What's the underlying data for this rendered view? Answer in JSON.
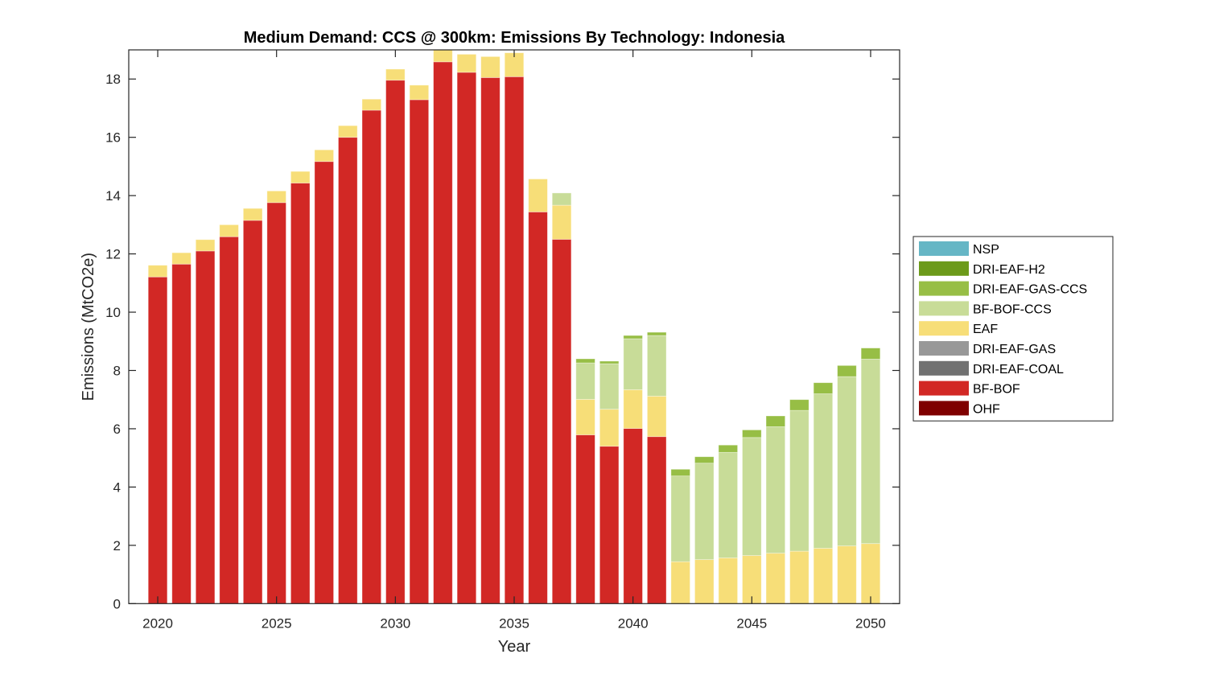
{
  "chart_data": {
    "type": "bar",
    "stacked": true,
    "title": "Medium Demand: CCS @ 300km: Emissions By Technology: Indonesia",
    "xlabel": "Year",
    "ylabel": "Emissions (MtCO2e)",
    "xlim": [
      2018.78,
      2051.22
    ],
    "ylim": [
      0,
      19
    ],
    "xticks": [
      2020,
      2025,
      2030,
      2035,
      2040,
      2045,
      2050
    ],
    "yticks": [
      0,
      2,
      4,
      6,
      8,
      10,
      12,
      14,
      16,
      18
    ],
    "grid": false,
    "legend_position": "right",
    "categories": [
      2020,
      2021,
      2022,
      2023,
      2024,
      2025,
      2026,
      2027,
      2028,
      2029,
      2030,
      2031,
      2032,
      2033,
      2034,
      2035,
      2036,
      2037,
      2038,
      2039,
      2040,
      2041,
      2042,
      2043,
      2044,
      2045,
      2046,
      2047,
      2048,
      2049,
      2050
    ],
    "series": [
      {
        "name": "OHF",
        "color": "#7F0000",
        "values": [
          0,
          0,
          0,
          0,
          0,
          0,
          0,
          0,
          0,
          0,
          0,
          0,
          0,
          0,
          0,
          0,
          0,
          0,
          0,
          0,
          0,
          0,
          0,
          0,
          0,
          0,
          0,
          0,
          0,
          0,
          0
        ]
      },
      {
        "name": "BF-BOF",
        "color": "#D22825",
        "values": [
          11.21,
          11.65,
          12.1,
          12.59,
          13.15,
          13.76,
          14.43,
          15.17,
          16.0,
          16.93,
          17.96,
          17.29,
          18.59,
          18.23,
          18.05,
          18.08,
          13.44,
          12.5,
          5.79,
          5.4,
          6.01,
          5.73,
          0,
          0,
          0,
          0,
          0,
          0,
          0,
          0,
          0
        ]
      },
      {
        "name": "DRI-EAF-COAL",
        "color": "#717171",
        "values": [
          0,
          0,
          0,
          0,
          0,
          0,
          0,
          0,
          0,
          0,
          0,
          0,
          0,
          0,
          0,
          0,
          0,
          0,
          0,
          0,
          0,
          0,
          0,
          0,
          0,
          0,
          0,
          0,
          0,
          0,
          0
        ]
      },
      {
        "name": "DRI-EAF-GAS",
        "color": "#989898",
        "values": [
          0,
          0,
          0,
          0,
          0,
          0,
          0,
          0,
          0,
          0,
          0,
          0,
          0,
          0,
          0,
          0,
          0,
          0,
          0,
          0,
          0,
          0,
          0,
          0,
          0,
          0,
          0,
          0,
          0,
          0,
          0
        ]
      },
      {
        "name": "EAF",
        "color": "#F7DE78",
        "values": [
          0.4,
          0.39,
          0.39,
          0.41,
          0.41,
          0.4,
          0.4,
          0.4,
          0.4,
          0.38,
          0.38,
          0.5,
          0.6,
          0.62,
          0.72,
          0.82,
          1.13,
          1.17,
          1.22,
          1.27,
          1.33,
          1.39,
          1.44,
          1.51,
          1.57,
          1.65,
          1.73,
          1.8,
          1.9,
          1.98,
          2.06
        ]
      },
      {
        "name": "BF-BOF-CCS",
        "color": "#C8DC98",
        "values": [
          0,
          0,
          0,
          0,
          0,
          0,
          0,
          0,
          0,
          0,
          0,
          0,
          0,
          0,
          0,
          0,
          0,
          0.42,
          1.25,
          1.56,
          1.75,
          2.08,
          2.94,
          3.31,
          3.62,
          4.05,
          4.34,
          4.83,
          5.3,
          5.81,
          6.33
        ]
      },
      {
        "name": "DRI-EAF-GAS-CCS",
        "color": "#97BE45",
        "values": [
          0,
          0,
          0,
          0,
          0,
          0,
          0,
          0,
          0,
          0,
          0,
          0,
          0,
          0,
          0,
          0,
          0,
          0,
          0.14,
          0.09,
          0.11,
          0.11,
          0.23,
          0.22,
          0.25,
          0.26,
          0.37,
          0.37,
          0.38,
          0.38,
          0.38
        ]
      },
      {
        "name": "DRI-EAF-H2",
        "color": "#6C9A1A",
        "values": [
          0,
          0,
          0,
          0,
          0,
          0,
          0,
          0,
          0,
          0,
          0,
          0,
          0,
          0,
          0,
          0,
          0,
          0,
          0,
          0,
          0,
          0,
          0,
          0,
          0,
          0,
          0,
          0,
          0,
          0,
          0
        ]
      },
      {
        "name": "NSP",
        "color": "#66B6C5",
        "values": [
          0,
          0,
          0,
          0,
          0,
          0,
          0,
          0,
          0,
          0,
          0,
          0,
          0,
          0,
          0,
          0,
          0,
          0,
          0,
          0,
          0,
          0,
          0,
          0,
          0,
          0,
          0,
          0,
          0,
          0,
          0
        ]
      }
    ],
    "legend": [
      "NSP",
      "DRI-EAF-H2",
      "DRI-EAF-GAS-CCS",
      "BF-BOF-CCS",
      "EAF",
      "DRI-EAF-GAS",
      "DRI-EAF-COAL",
      "BF-BOF",
      "OHF"
    ]
  }
}
